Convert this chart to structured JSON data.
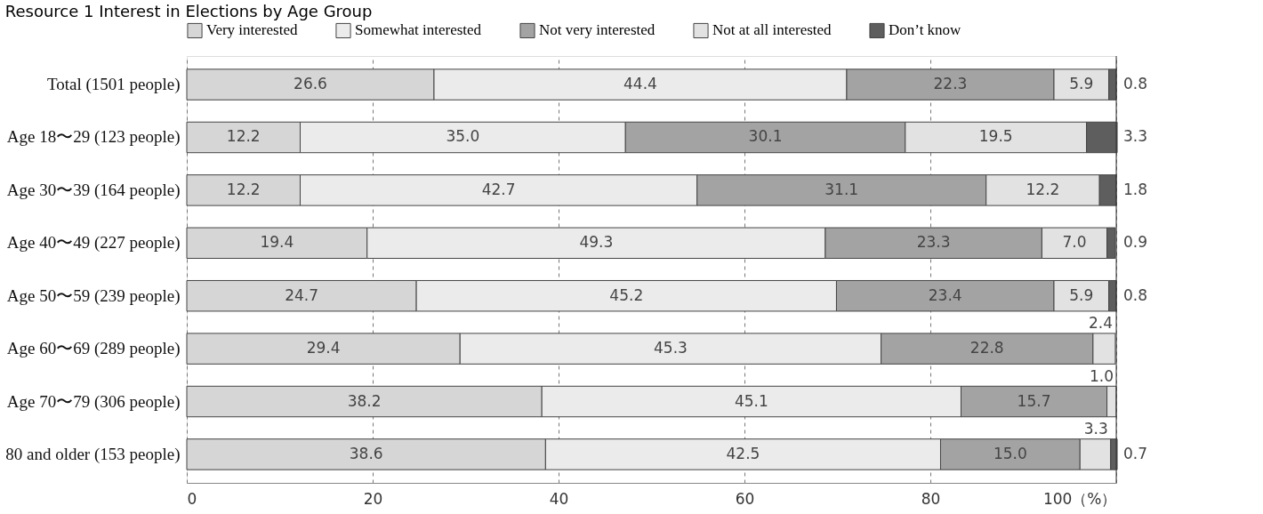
{
  "chart_data": {
    "type": "bar",
    "orientation": "horizontal",
    "stacked": true,
    "title": "Resource 1  Interest in Elections by Age Group",
    "categories": [
      "Total (1501 people)",
      "Age 18〜29 (123 people)",
      "Age 30〜39 (164 people)",
      "Age 40〜49 (227 people)",
      "Age 50〜59 (239 people)",
      "Age 60〜69 (289 people)",
      "Age 70〜79 (306 people)",
      "80 and older (153 people)"
    ],
    "series": [
      {
        "name": "Very interested",
        "color": "#d6d6d6",
        "values": [
          26.6,
          12.2,
          12.2,
          19.4,
          24.7,
          29.4,
          38.2,
          38.6
        ],
        "value_labels": [
          "26.6",
          "12.2",
          "12.2",
          "19.4",
          "24.7",
          "29.4",
          "38.2",
          "38.6"
        ]
      },
      {
        "name": "Somewhat interested",
        "color": "#ebebeb",
        "values": [
          44.4,
          35.0,
          42.7,
          49.3,
          45.2,
          45.3,
          45.1,
          42.5
        ],
        "value_labels": [
          "44.4",
          "35.0",
          "42.7",
          "49.3",
          "45.2",
          "45.3",
          "45.1",
          "42.5"
        ]
      },
      {
        "name": "Not very interested",
        "color": "#a3a3a3",
        "values": [
          22.3,
          30.1,
          31.1,
          23.3,
          23.4,
          22.8,
          15.7,
          15.0
        ],
        "value_labels": [
          "22.3",
          "30.1",
          "31.1",
          "23.3",
          "23.4",
          "22.8",
          "15.7",
          "15.0"
        ]
      },
      {
        "name": "Not at all interested",
        "color": "#e2e2e2",
        "values": [
          5.9,
          19.5,
          12.2,
          7.0,
          5.9,
          2.4,
          1.0,
          3.3
        ],
        "value_labels": [
          "5.9",
          "19.5",
          "12.2",
          "7.0",
          "5.9",
          "2.4",
          "1.0",
          "3.3"
        ]
      },
      {
        "name": "Don’t know",
        "color": "#5e5e5e",
        "values": [
          0.8,
          3.3,
          1.8,
          0.9,
          0.8,
          null,
          null,
          0.7
        ],
        "value_labels": [
          "0.8",
          "3.3",
          "1.8",
          "0.9",
          "0.8",
          null,
          null,
          "0.7"
        ]
      }
    ],
    "xlim": [
      0,
      100
    ],
    "xticks": [
      0,
      20,
      40,
      60,
      80,
      {
        "value": 100,
        "label": "100（%）"
      }
    ],
    "grid": "x",
    "legend": "top"
  }
}
